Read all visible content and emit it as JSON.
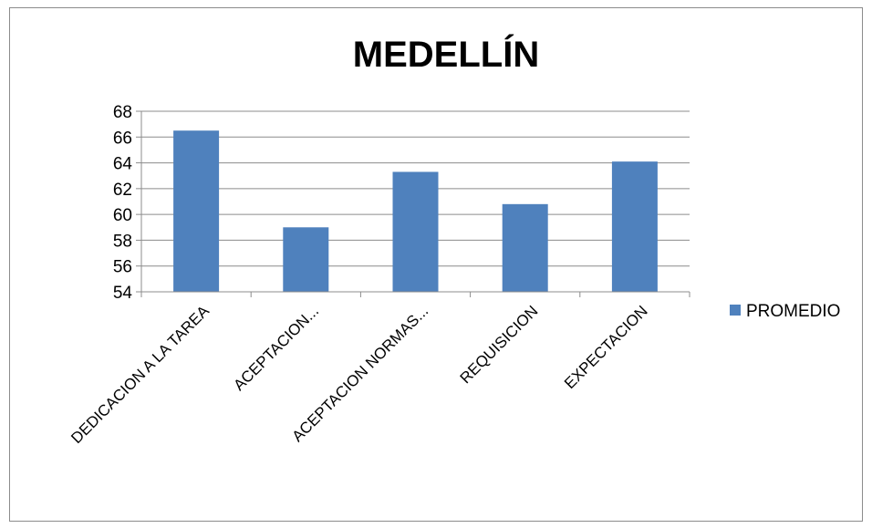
{
  "chart_data": {
    "type": "bar",
    "title": "MEDELLÍN",
    "categories": [
      "DEDICACION A LA TAREA",
      "ACEPTACION...",
      "ACEPTACION NORMAS...",
      "REQUISICION",
      "EXPECTACION"
    ],
    "series": [
      {
        "name": "PROMEDIO",
        "values": [
          66.5,
          59.0,
          63.3,
          60.8,
          64.1
        ],
        "color": "#4f81bd"
      }
    ],
    "ylim": [
      54,
      68
    ],
    "yticks": [
      "54",
      "56",
      "58",
      "60",
      "62",
      "64",
      "66",
      "68"
    ],
    "grid": true,
    "legend_position": "right"
  }
}
